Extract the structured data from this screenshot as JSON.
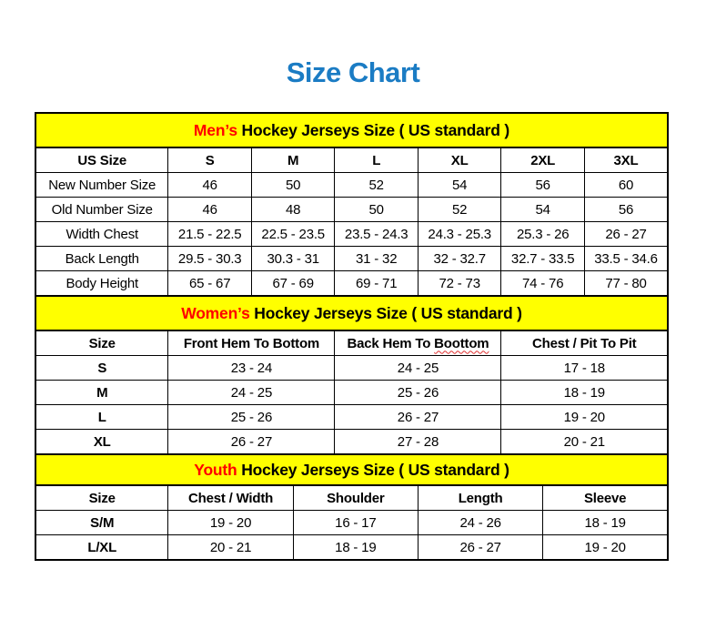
{
  "page": {
    "title": "Size Chart"
  },
  "colors": {
    "title_blue": "#1b7cc4",
    "highlight_red": "#ff0000",
    "banner_yellow": "#ffff00"
  },
  "tables": [
    {
      "id": "mens",
      "banner": {
        "highlight": "Men’s",
        "rest": " Hockey Jerseys Size ( US standard )"
      },
      "columns": [
        "US Size",
        "S",
        "M",
        "L",
        "XL",
        "2XL",
        "3XL"
      ],
      "rows": [
        {
          "label": "New Number Size",
          "values": [
            "46",
            "50",
            "52",
            "54",
            "56",
            "60"
          ]
        },
        {
          "label": "Old Number Size",
          "values": [
            "46",
            "48",
            "50",
            "52",
            "54",
            "56"
          ]
        },
        {
          "label": "Width Chest",
          "values": [
            "21.5 - 22.5",
            "22.5 - 23.5",
            "23.5 - 24.3",
            "24.3 - 25.3",
            "25.3 - 26",
            "26 - 27"
          ]
        },
        {
          "label": "Back Length",
          "values": [
            "29.5 - 30.3",
            "30.3 - 31",
            "31 - 32",
            "32 - 32.7",
            "32.7 - 33.5",
            "33.5 - 34.6"
          ]
        },
        {
          "label": "Body Height",
          "values": [
            "65 - 67",
            "67 - 69",
            "69 - 71",
            "72 - 73",
            "74 - 76",
            "77 - 80"
          ]
        }
      ]
    },
    {
      "id": "womens",
      "banner": {
        "highlight": "Women’s",
        "rest": " Hockey Jerseys Size ( US standard )"
      },
      "columns": [
        "Size",
        "Front Hem To Bottom",
        "Back Hem To Boottom",
        "Chest / Pit To Pit"
      ],
      "spellcheck_word": "Boottom",
      "rows": [
        {
          "label": "S",
          "values": [
            "23 - 24",
            "24 - 25",
            "17 - 18"
          ]
        },
        {
          "label": "M",
          "values": [
            "24 - 25",
            "25 - 26",
            "18 - 19"
          ]
        },
        {
          "label": "L",
          "values": [
            "25 - 26",
            "26 - 27",
            "19 - 20"
          ]
        },
        {
          "label": "XL",
          "values": [
            "26 - 27",
            "27 - 28",
            "20 - 21"
          ]
        }
      ]
    },
    {
      "id": "youth",
      "banner": {
        "highlight": "Youth",
        "rest": " Hockey Jerseys Size ( US standard )"
      },
      "columns": [
        "Size",
        "Chest / Width",
        "Shoulder",
        "Length",
        "Sleeve"
      ],
      "rows": [
        {
          "label": "S/M",
          "values": [
            "19 - 20",
            "16 - 17",
            "24 - 26",
            "18 - 19"
          ]
        },
        {
          "label": "L/XL",
          "values": [
            "20 - 21",
            "18 - 19",
            "26 - 27",
            "19 - 20"
          ]
        }
      ]
    }
  ]
}
